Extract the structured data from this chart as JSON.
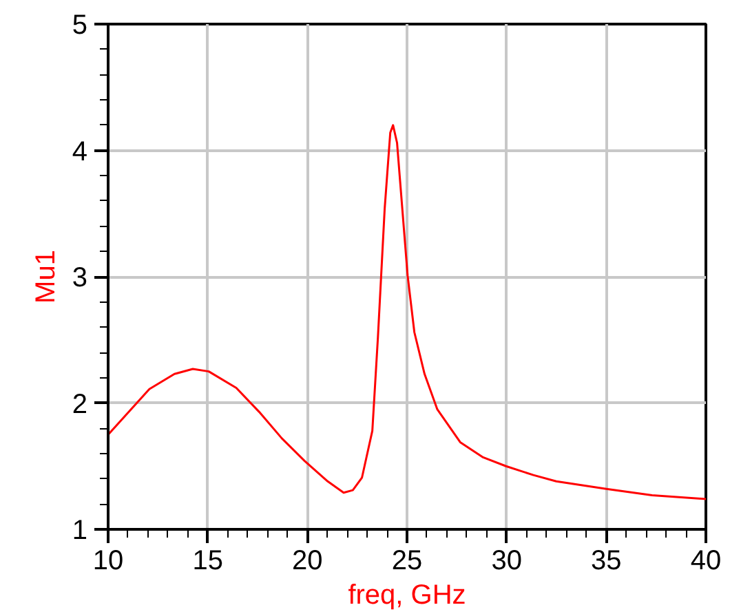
{
  "chart_data": {
    "type": "line",
    "xlabel": "freq, GHz",
    "ylabel": "Mu1",
    "xlim": [
      10,
      40
    ],
    "ylim": [
      1,
      5
    ],
    "xticks": [
      10,
      15,
      20,
      25,
      30,
      35,
      40
    ],
    "yticks": [
      1,
      2,
      3,
      4,
      5
    ],
    "grid": true,
    "marker": "none",
    "line_style": "solid",
    "x": [
      10,
      12.07,
      13.33,
      14.25,
      15.05,
      16.43,
      17.58,
      18.72,
      19.87,
      21.02,
      21.82,
      22.28,
      22.74,
      23.26,
      23.54,
      23.88,
      24.16,
      24.3,
      24.5,
      25.03,
      25.37,
      25.88,
      26.52,
      27.67,
      28.82,
      29.97,
      31.34,
      32.49,
      35.0,
      37.3,
      40
    ],
    "series": [
      {
        "color": "#ff0000",
        "values": [
          1.75,
          2.11,
          2.23,
          2.27,
          2.25,
          2.12,
          1.93,
          1.72,
          1.54,
          1.38,
          1.29,
          1.31,
          1.41,
          1.78,
          2.52,
          3.54,
          4.14,
          4.2,
          4.06,
          3.01,
          2.56,
          2.23,
          1.95,
          1.69,
          1.57,
          1.5,
          1.43,
          1.38,
          1.32,
          1.27,
          1.24
        ]
      }
    ]
  }
}
